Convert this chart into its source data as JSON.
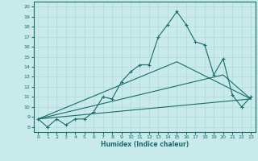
{
  "xlabel": "Humidex (Indice chaleur)",
  "ylabel": "",
  "bg_color": "#c8eaea",
  "grid_color": "#b0d8d8",
  "line_color": "#1a6b6b",
  "xlim": [
    -0.5,
    23.5
  ],
  "ylim": [
    7.5,
    20.5
  ],
  "xticks": [
    0,
    1,
    2,
    3,
    4,
    5,
    6,
    7,
    8,
    9,
    10,
    11,
    12,
    13,
    14,
    15,
    16,
    17,
    18,
    19,
    20,
    21,
    22,
    23
  ],
  "yticks": [
    8,
    9,
    10,
    11,
    12,
    13,
    14,
    15,
    16,
    17,
    18,
    19,
    20
  ],
  "line1_x": [
    0,
    1,
    2,
    3,
    4,
    5,
    6,
    7,
    8,
    9,
    10,
    11,
    12,
    13,
    14,
    15,
    16,
    17,
    18,
    19,
    20,
    21,
    22,
    23
  ],
  "line1_y": [
    8.8,
    8.0,
    8.8,
    8.2,
    8.8,
    8.8,
    9.5,
    11.0,
    10.8,
    12.5,
    13.5,
    14.2,
    14.2,
    17.0,
    18.2,
    19.5,
    18.2,
    16.5,
    16.2,
    13.2,
    14.8,
    11.2,
    10.0,
    11.0
  ],
  "line2_x": [
    0,
    23
  ],
  "line2_y": [
    8.8,
    10.8
  ],
  "line3_x": [
    0,
    15,
    23
  ],
  "line3_y": [
    8.8,
    14.5,
    10.8
  ],
  "line4_x": [
    0,
    20,
    23
  ],
  "line4_y": [
    8.8,
    13.2,
    10.8
  ]
}
